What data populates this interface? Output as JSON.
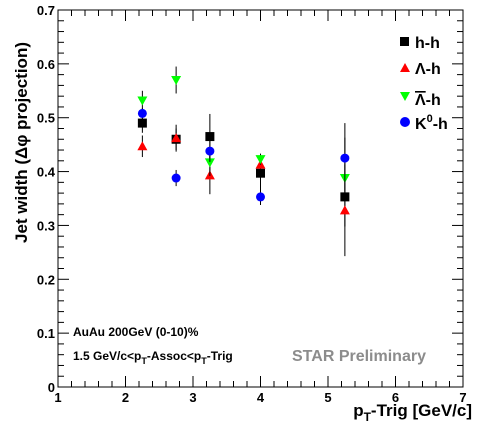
{
  "chart_data": {
    "type": "scatter",
    "xlabel": "p_T-Trig [GeV/c]",
    "ylabel": "Jet width (Δφ projection)",
    "xlim": [
      1,
      7
    ],
    "ylim": [
      0,
      0.7
    ],
    "x_ticks": [
      1,
      2,
      3,
      4,
      5,
      6,
      7
    ],
    "y_ticks": [
      0,
      0.1,
      0.2,
      0.3,
      0.4,
      0.5,
      0.6,
      0.7
    ],
    "x_tick_labels": [
      "1",
      "2",
      "3",
      "4",
      "5",
      "6",
      "7"
    ],
    "y_tick_labels": [
      "0",
      "0.1",
      "0.2",
      "0.3",
      "0.4",
      "0.5",
      "0.6",
      "0.7"
    ],
    "grid": false,
    "legend_position": "top-right",
    "series": [
      {
        "name": "h-h",
        "marker": "square",
        "color": "#000000",
        "x": [
          2.25,
          2.75,
          3.25,
          4.0,
          5.25
        ],
        "y": [
          0.49,
          0.46,
          0.465,
          0.397,
          0.353
        ],
        "yerr": [
          0.018,
          0.02,
          0.042,
          0.03,
          0.11
        ]
      },
      {
        "name": "Λ-h",
        "marker": "triangle-up",
        "color": "#ff0000",
        "x": [
          2.25,
          2.75,
          3.25,
          4.0,
          5.25
        ],
        "y": [
          0.447,
          0.462,
          0.393,
          0.413,
          0.328
        ],
        "yerr": [
          0.02,
          0.025,
          0.035,
          0.02,
          0.03
        ]
      },
      {
        "name": "Λ̄-h",
        "marker": "triangle-down",
        "color": "#00ff00",
        "x": [
          2.25,
          2.75,
          3.25,
          4.0,
          5.25
        ],
        "y": [
          0.532,
          0.57,
          0.417,
          0.423,
          0.388
        ],
        "yerr": [
          0.018,
          0.025,
          0.025,
          0.01,
          0.025
        ]
      },
      {
        "name": "K0-h",
        "marker": "circle",
        "color": "#0000ff",
        "x": [
          2.25,
          2.75,
          3.25,
          4.0,
          5.25
        ],
        "y": [
          0.508,
          0.388,
          0.438,
          0.353,
          0.425
        ],
        "yerr": [
          0.01,
          0.015,
          0.02,
          0.015,
          0.065
        ]
      }
    ],
    "annotations": [
      "AuAu 200GeV (0-10)%",
      "1.5 GeV/c<p_T-Assoc<p_T-Trig",
      "STAR Preliminary"
    ]
  }
}
